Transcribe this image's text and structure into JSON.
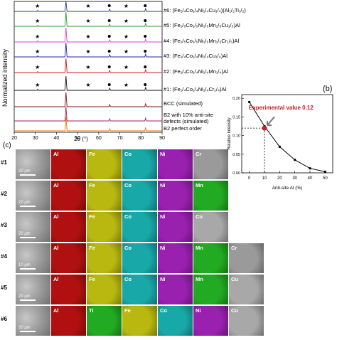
{
  "panel_a": {
    "ylabel": "Normalized intensity",
    "xlabel": "2θ (°)",
    "xticks": [
      "20",
      "30",
      "40",
      "50",
      "60",
      "70",
      "80",
      "90"
    ],
    "traces": [
      {
        "label_main": "#6: (Fe",
        "sub": "1/4",
        "rest": "Co₁/₄Ni₁/₄Cu₁/₄)(Al₁/₂Ti₁/₂)",
        "color": "#1f3f8f"
      },
      {
        "label_main": "#5: (Fe",
        "sub": "1/5",
        "rest": "Co₁/₅Ni₁/₅Mn₁/₅Cu₁/₅)Al",
        "color": "#2a9a2a"
      },
      {
        "label_main": "#4: (Fe",
        "sub": "1/5",
        "rest": "Co₁/₅Ni₁/₅Mn₁/₅Cr₁/₅)Al",
        "color": "#e040c0"
      },
      {
        "label_main": "#3: (Fe",
        "sub": "1/4",
        "rest": "Co₁/₄Ni₁/₄Cu₁/₄)Al",
        "color": "#2020b0"
      },
      {
        "label_main": "#2: (Fe",
        "sub": "1/4",
        "rest": "Co₁/₄Ni₁/₄Mn₁/₄)Al",
        "color": "#d01818"
      },
      {
        "label_main": "#1: (Fe",
        "sub": "1/4",
        "rest": "Co₁/₄Ni₁/₄Cr₁/₄)Al",
        "color": "#111111"
      },
      {
        "label_main": "BCC (simulated)",
        "sub": "",
        "rest": "",
        "color": "#7a1010"
      },
      {
        "label_main": "B2 with 10% anti-site",
        "sub": "",
        "rest": "defects (simulated)",
        "color": "#a02060"
      },
      {
        "label_main": "B2 perfect order",
        "sub": "",
        "rest": "",
        "color": "#e07b10"
      }
    ],
    "labels_text": [
      "#6: (Fe₁/₄Co₁/₄Ni₁/₄Cu₁/₄)(Al₁/₂Ti₁/₂)",
      "#5: (Fe₁/₅Co₁/₅Ni₁/₅Mn₁/₅Cu₁/₅)Al",
      "#4: (Fe₁/₅Co₁/₅Ni₁/₅Mn₁/₅Cr₁/₅)Al",
      "#3: (Fe₁/₄Co₁/₄Ni₁/₄Cu₁/₄)Al",
      "#2: (Fe₁/₄Co₁/₄Ni₁/₄Mn₁/₄)Al",
      "#1: (Fe₁/₄Co₁/₄Ni₁/₄Cr₁/₄)Al",
      "BCC (simulated)",
      "B2 with 10% anti-site defects (simulated)",
      "B2 perfect order"
    ]
  },
  "panel_b": {
    "tag": "(b)",
    "annotation": "Experimental value 0.12",
    "ylabel": "Relative intensity",
    "xlabel": "Anti-site Al (%)",
    "yticks": [
      "0.00",
      "0.05",
      "0.10",
      "0.15",
      "0.20"
    ],
    "xticks": [
      "0",
      "10",
      "20",
      "30",
      "40",
      "50"
    ]
  },
  "panel_c": {
    "tag": "(c)",
    "rows": [
      {
        "id": "#1",
        "scale": "20 μm",
        "maps": [
          "Al",
          "Fe",
          "Co",
          "Ni",
          "Cr"
        ]
      },
      {
        "id": "#2",
        "scale": "20 μm",
        "maps": [
          "Al",
          "Fe",
          "Co",
          "Ni",
          "Mn"
        ]
      },
      {
        "id": "#3",
        "scale": "20 μm",
        "maps": [
          "Al",
          "Fe",
          "Co",
          "Ni",
          "Cu"
        ]
      },
      {
        "id": "#4",
        "scale": "10 μm",
        "maps": [
          "Al",
          "Fe",
          "Co",
          "Ni",
          "Mn",
          "Cr"
        ]
      },
      {
        "id": "#5",
        "scale": "20 μm",
        "maps": [
          "Al",
          "Fe",
          "Co",
          "Ni",
          "Mn",
          "Cu"
        ]
      },
      {
        "id": "#6",
        "scale": "20 μm",
        "maps": [
          "Al",
          "Ti",
          "Fe",
          "Co",
          "Ni",
          "Cu"
        ]
      }
    ],
    "element_colors": {
      "Al": "#b01010",
      "Fe": "#b8b810",
      "Co": "#18a8a8",
      "Ni": "#9a20b0",
      "Cr": "#9a9a9a",
      "Mn": "#22aa22",
      "Cu": "#a8a8a8",
      "Ti": "#22aa22",
      "SEM": "#9a9a9a"
    }
  },
  "chart_data": [
    {
      "type": "line",
      "title": "",
      "xlabel": "Anti-site Al (%)",
      "ylabel": "Relative intensity",
      "x": [
        0,
        10,
        20,
        30,
        40,
        50
      ],
      "series": [
        {
          "values": [
            0.19,
            0.125,
            0.07,
            0.035,
            0.012,
            0.003
          ]
        }
      ],
      "highlight": {
        "x": 10,
        "y": 0.12,
        "label": "Experimental value 0.12"
      },
      "xlim": [
        -5,
        55
      ],
      "ylim": [
        0,
        0.21
      ]
    }
  ]
}
